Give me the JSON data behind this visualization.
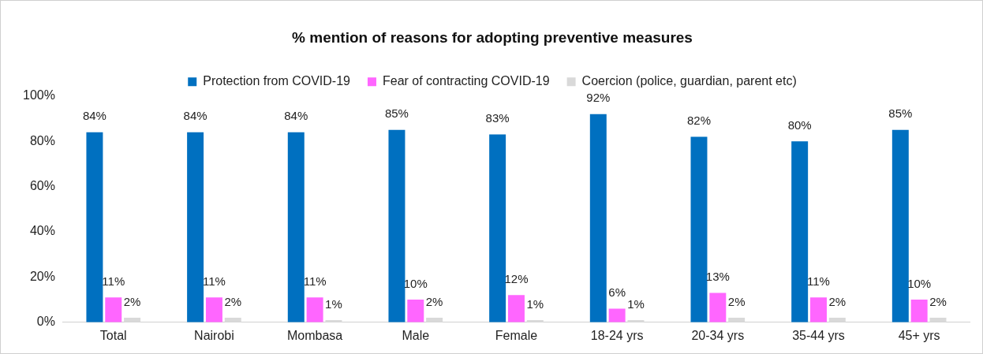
{
  "chart_data": {
    "type": "bar",
    "title": "% mention of reasons for adopting preventive measures",
    "categories": [
      "Total",
      "Nairobi",
      "Mombasa",
      "Male",
      "Female",
      "18-24 yrs",
      "20-34 yrs",
      "35-44 yrs",
      "45+ yrs"
    ],
    "series": [
      {
        "name": "Protection from COVID-19",
        "color": "#0070c0",
        "values": [
          84,
          84,
          84,
          85,
          83,
          92,
          82,
          80,
          85
        ],
        "value_labels": [
          "84%",
          "84%",
          "84%",
          "85%",
          "83%",
          "92%",
          "82%",
          "80%",
          "85%"
        ]
      },
      {
        "name": "Fear of contracting COVID-19",
        "color": "#ff66ff",
        "values": [
          11,
          11,
          11,
          10,
          12,
          6,
          13,
          11,
          10
        ],
        "value_labels": [
          "11%",
          "11%",
          "11%",
          "10%",
          "12%",
          "6%",
          "13%",
          "11%",
          "10%"
        ]
      },
      {
        "name": "Coercion (police, guardian, parent etc)",
        "color": "#d9d9d9",
        "values": [
          2,
          2,
          1,
          2,
          1,
          1,
          2,
          2,
          2
        ],
        "value_labels": [
          "2%",
          "2%",
          "1%",
          "2%",
          "1%",
          "1%",
          "2%",
          "2%",
          "2%"
        ]
      }
    ],
    "ylim": [
      0,
      100
    ],
    "yticks": [
      {
        "value": 0,
        "label": "0%"
      },
      {
        "value": 20,
        "label": "20%"
      },
      {
        "value": 40,
        "label": "40%"
      },
      {
        "value": 60,
        "label": "60%"
      },
      {
        "value": 80,
        "label": "80%"
      },
      {
        "value": 100,
        "label": "100%"
      }
    ],
    "grid": false,
    "legend": "top"
  }
}
